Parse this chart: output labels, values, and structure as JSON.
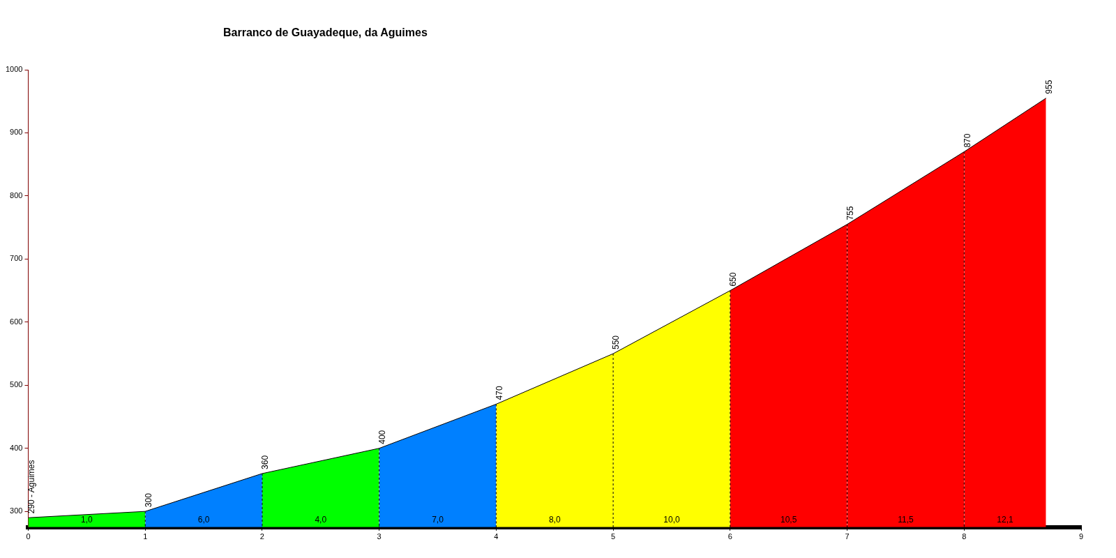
{
  "chart_data": {
    "type": "area",
    "title": "Barranco de Guayadeque, da Aguimes",
    "xlim": [
      0,
      9
    ],
    "xticks": [
      0,
      1,
      2,
      3,
      4,
      5,
      6,
      7,
      8,
      9
    ],
    "ylim": [
      275,
      1000
    ],
    "yticks": [
      300,
      400,
      500,
      600,
      700,
      800,
      900,
      1000
    ],
    "grid": "x",
    "legend": false,
    "series": [
      {
        "color": "#00ff00",
        "x": [
          0,
          1
        ],
        "values": [
          290,
          300
        ],
        "value_labels": [
          "290 - Aguimes",
          null
        ]
      },
      {
        "color": "#0080ff",
        "x": [
          1,
          2
        ],
        "values": [
          300,
          360
        ],
        "value_labels": [
          "300",
          null
        ]
      },
      {
        "color": "#00ff00",
        "x": [
          2,
          3
        ],
        "values": [
          360,
          400
        ],
        "value_labels": [
          "360",
          null
        ]
      },
      {
        "color": "#0080ff",
        "x": [
          3,
          4
        ],
        "values": [
          400,
          470
        ],
        "value_labels": [
          "400",
          null
        ]
      },
      {
        "color": "#ffff00",
        "x": [
          4,
          5
        ],
        "values": [
          470,
          550
        ],
        "value_labels": [
          "470",
          null
        ]
      },
      {
        "color": "#ffff00",
        "x": [
          5,
          6
        ],
        "values": [
          550,
          650
        ],
        "value_labels": [
          "550",
          null
        ]
      },
      {
        "color": "#ff0000",
        "x": [
          6,
          7
        ],
        "values": [
          650,
          755
        ],
        "value_labels": [
          "650",
          null
        ]
      },
      {
        "color": "#ff0000",
        "x": [
          7,
          8
        ],
        "values": [
          755,
          870
        ],
        "value_labels": [
          "755",
          null
        ]
      },
      {
        "color": "#ff0000",
        "x": [
          8,
          8.7
        ],
        "values": [
          870,
          955
        ],
        "value_labels": [
          "870",
          "955"
        ]
      }
    ],
    "annotations": [
      "1,0",
      "6,0",
      "4,0",
      "7,0",
      "8,0",
      "10,0",
      "10,5",
      "11,5",
      "12,1"
    ]
  }
}
